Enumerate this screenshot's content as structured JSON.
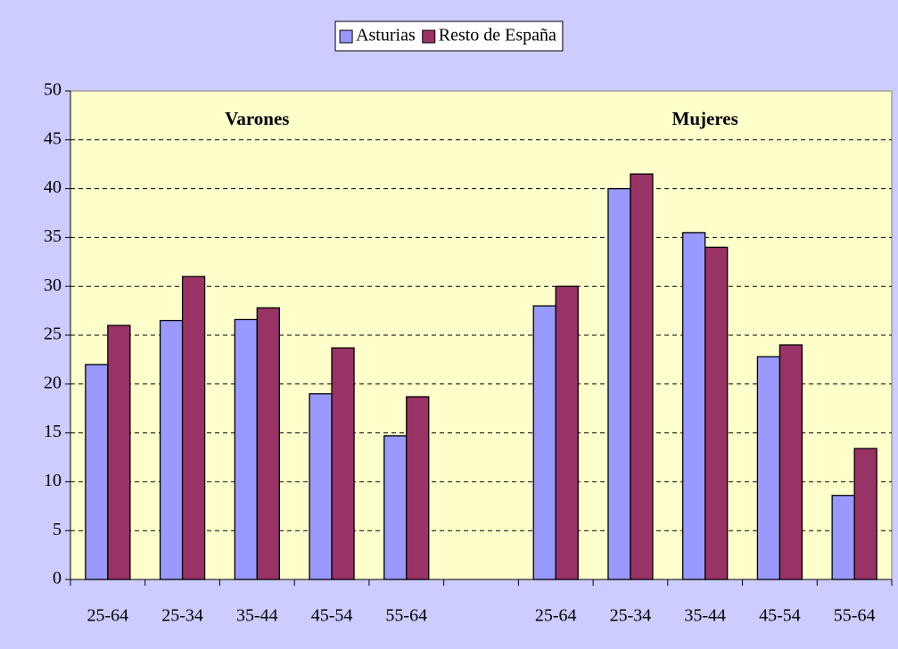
{
  "chart_data": {
    "type": "bar",
    "categories": [
      "25-64",
      "25-34",
      "35-44",
      "45-54",
      "55-64",
      null,
      "25-64",
      "25-34",
      "35-44",
      "45-54",
      "55-64"
    ],
    "series": [
      {
        "name": "Asturias",
        "color": "#9999ff",
        "values": [
          22,
          26.5,
          26.6,
          19,
          14.7,
          null,
          28,
          40,
          35.5,
          22.8,
          8.6
        ]
      },
      {
        "name": "Resto de España",
        "color": "#993366",
        "values": [
          26,
          31,
          27.8,
          23.7,
          18.7,
          null,
          30,
          41.5,
          34,
          24,
          13.4
        ]
      }
    ],
    "annotations": [
      "Varones",
      "Mujeres"
    ],
    "ylim": [
      0,
      50
    ],
    "yticks": [
      0,
      5,
      10,
      15,
      20,
      25,
      30,
      35,
      40,
      45,
      50
    ],
    "grid": true,
    "legend": "top"
  }
}
